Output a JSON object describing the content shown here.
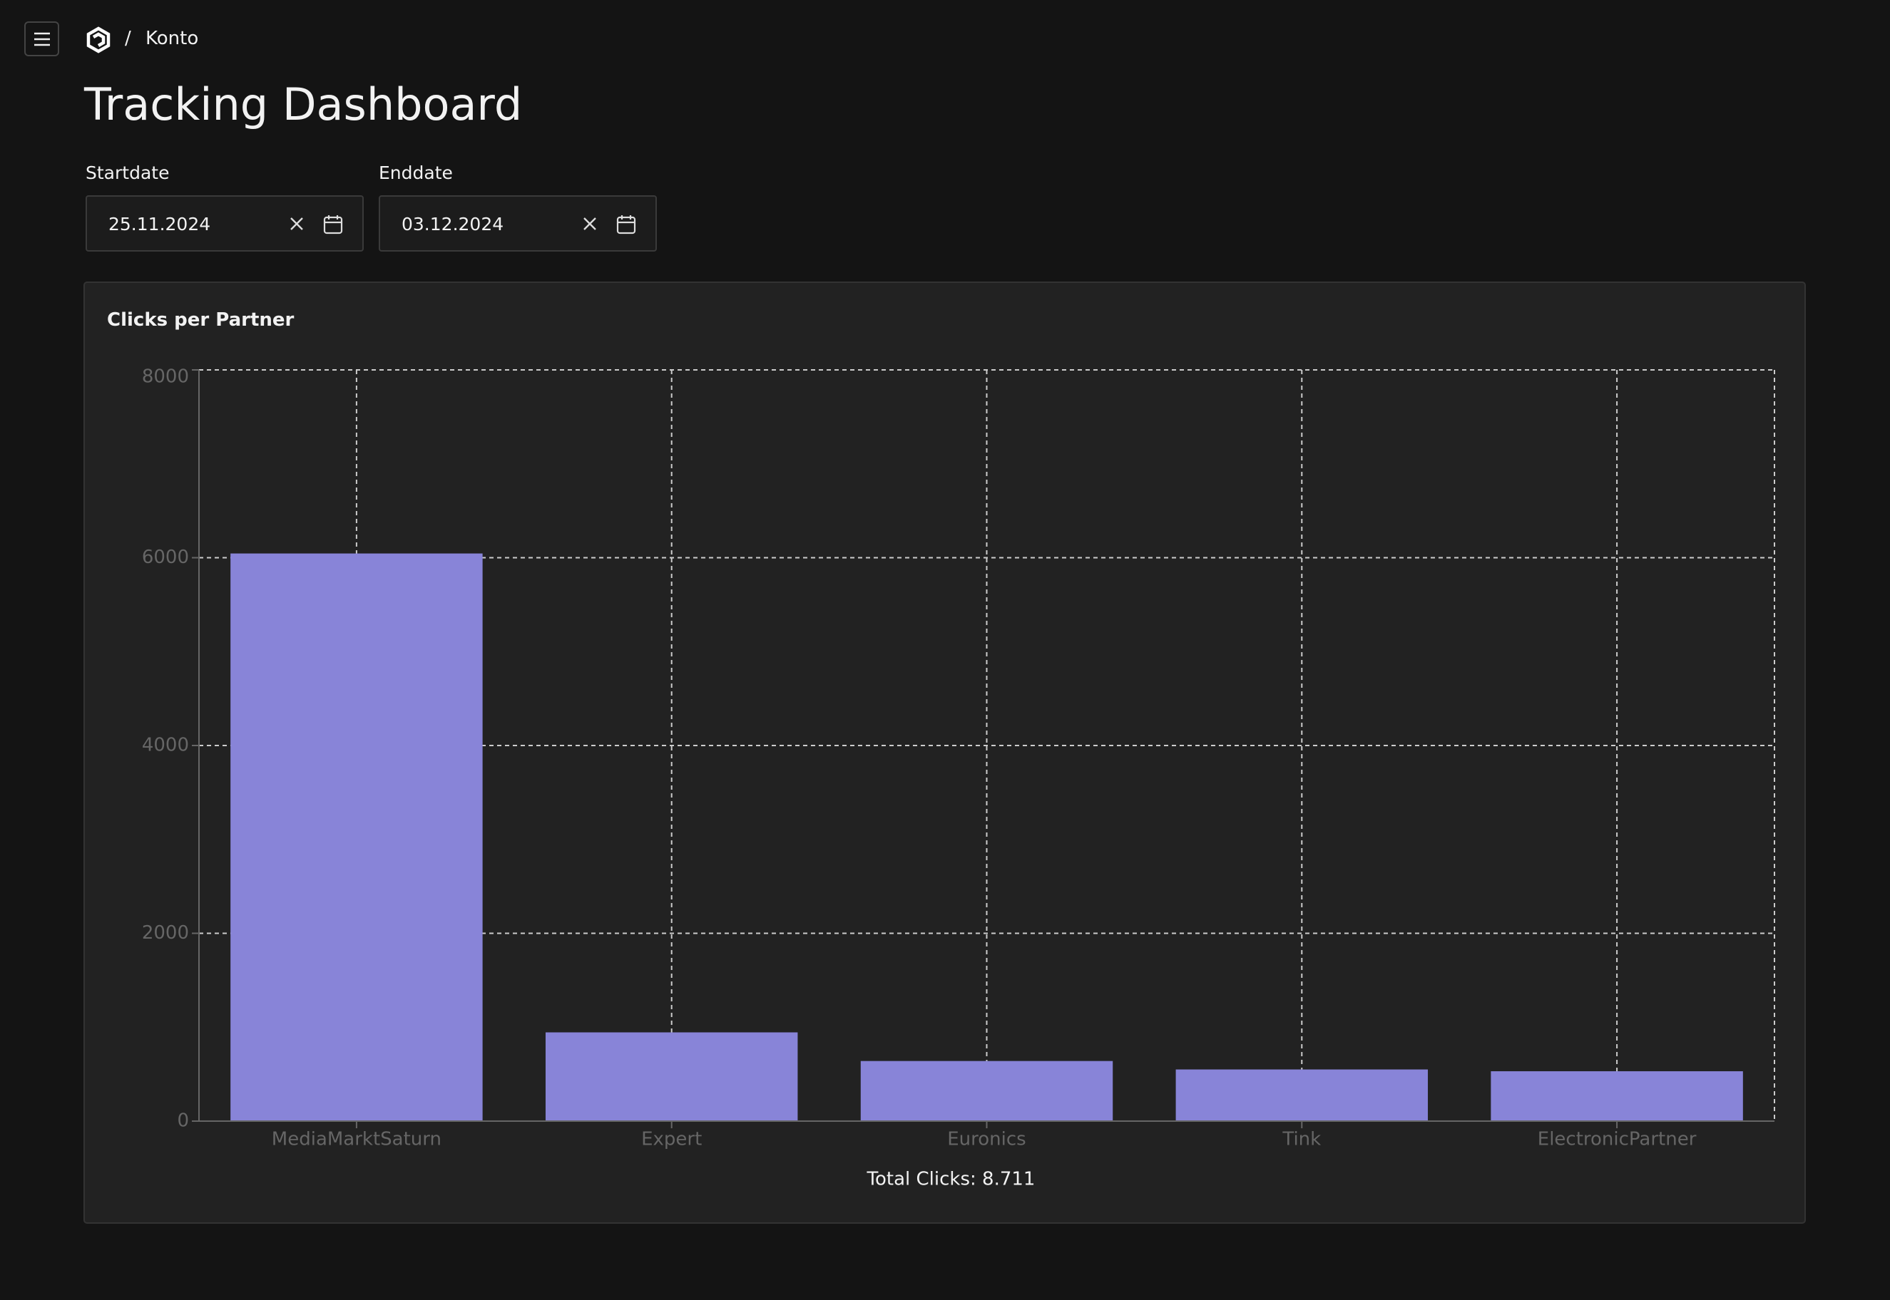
{
  "header": {
    "breadcrumb": "Konto",
    "title": "Tracking Dashboard"
  },
  "filters": [
    {
      "label": "Startdate",
      "value": "25.11.2024"
    },
    {
      "label": "Enddate",
      "value": "03.12.2024"
    }
  ],
  "chart_data": {
    "type": "bar",
    "title": "Clicks per Partner",
    "categories": [
      "MediaMarktSaturn",
      "Expert",
      "Euronics",
      "Tink",
      "ElectronicPartner"
    ],
    "values": [
      6045,
      945,
      640,
      550,
      531
    ],
    "color": "#8884d8",
    "ylim": [
      0,
      8000
    ],
    "yticks": [
      0,
      2000,
      4000,
      6000,
      8000
    ],
    "grid": true,
    "footer": "Total Clicks: 8.711"
  }
}
